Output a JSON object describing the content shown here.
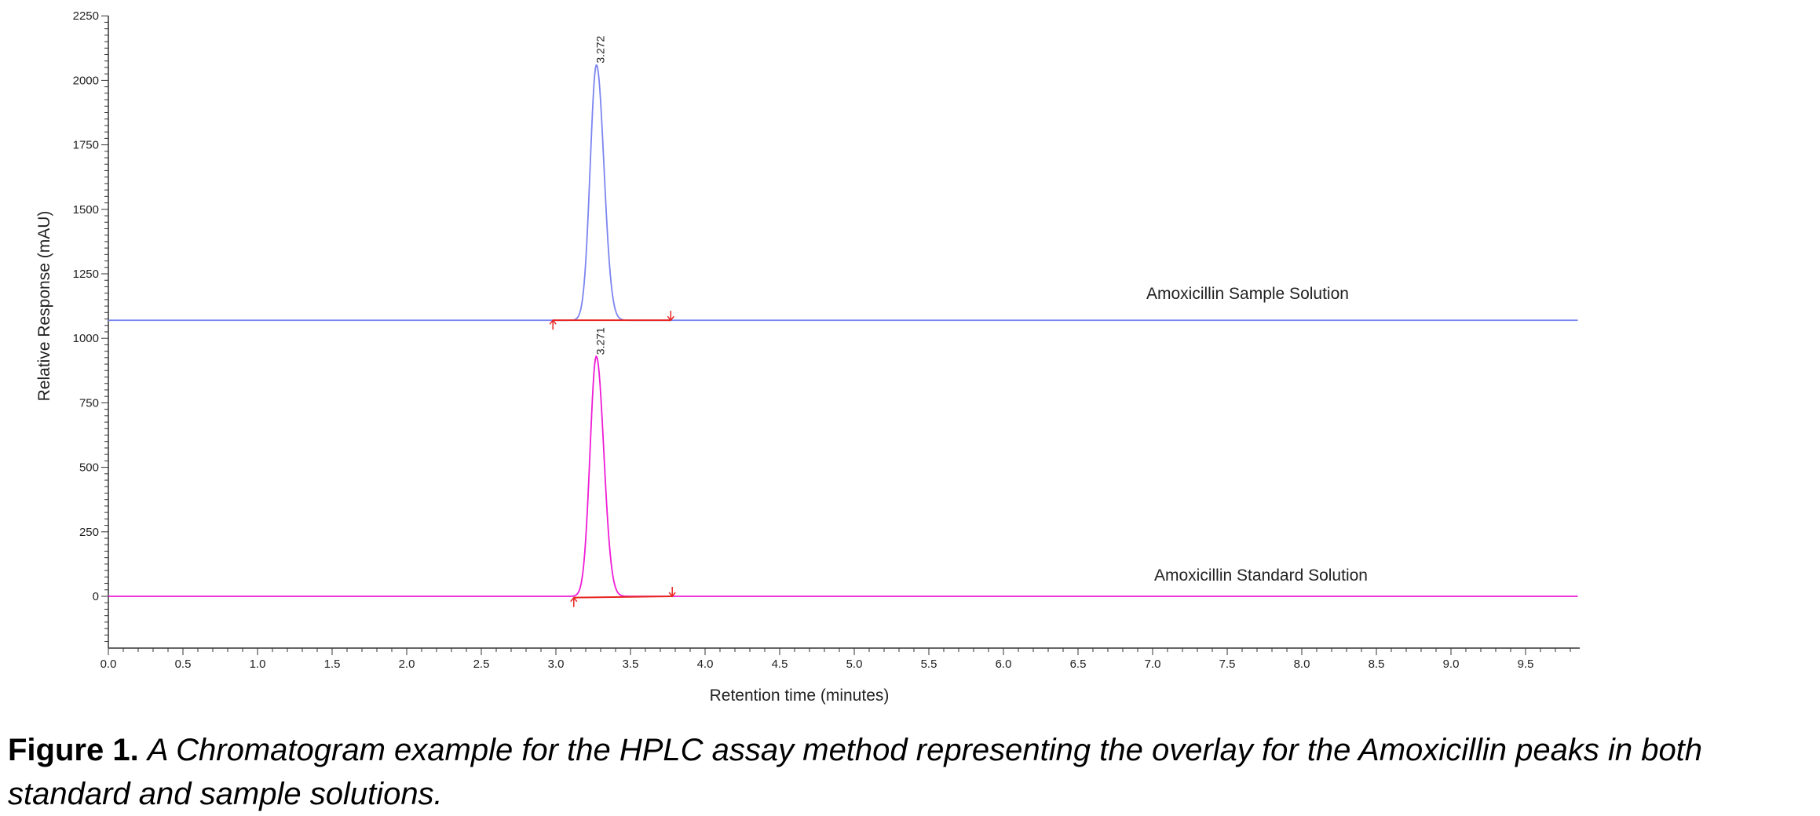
{
  "chart_data": {
    "type": "line",
    "xlabel": "Retention time (minutes)",
    "ylabel": "Relative Response (mAU)",
    "xlim": [
      0,
      9.85
    ],
    "ylim": [
      -200,
      2270
    ],
    "x_ticks": [
      "0.0",
      "0.5",
      "1.0",
      "1.5",
      "2.0",
      "2.5",
      "3.0",
      "3.5",
      "4.0",
      "4.5",
      "5.0",
      "5.5",
      "6.0",
      "6.5",
      "7.0",
      "7.5",
      "8.0",
      "8.5",
      "9.0",
      "9.5"
    ],
    "y_ticks": [
      "0",
      "250",
      "500",
      "750",
      "1000",
      "1250",
      "1500",
      "1750",
      "2000",
      "2250"
    ],
    "grid": false,
    "series": [
      {
        "name": "Amoxicillin Sample Solution",
        "color": "#7b85f0",
        "baseline": 1070,
        "x_end": 9.85,
        "peak": {
          "x": 3.272,
          "y": 2060,
          "label": "3.272"
        },
        "integration": {
          "color": "#e8251f",
          "start": [
            2.98,
            1070
          ],
          "end": [
            3.77,
            1070
          ]
        }
      },
      {
        "name": "Amoxicillin Standard Solution",
        "color": "#ee1cd6",
        "baseline": 0,
        "x_end": 9.85,
        "peak": {
          "x": 3.271,
          "y": 930,
          "label": "3.271"
        },
        "integration": {
          "color": "#e8251f",
          "start": [
            3.12,
            -5
          ],
          "end": [
            3.78,
            0
          ]
        }
      }
    ]
  },
  "caption": {
    "label": "Figure 1.",
    "text": "A Chromatogram example for the HPLC assay method representing the overlay for the Amoxicillin peaks in both standard and sample solutions."
  }
}
